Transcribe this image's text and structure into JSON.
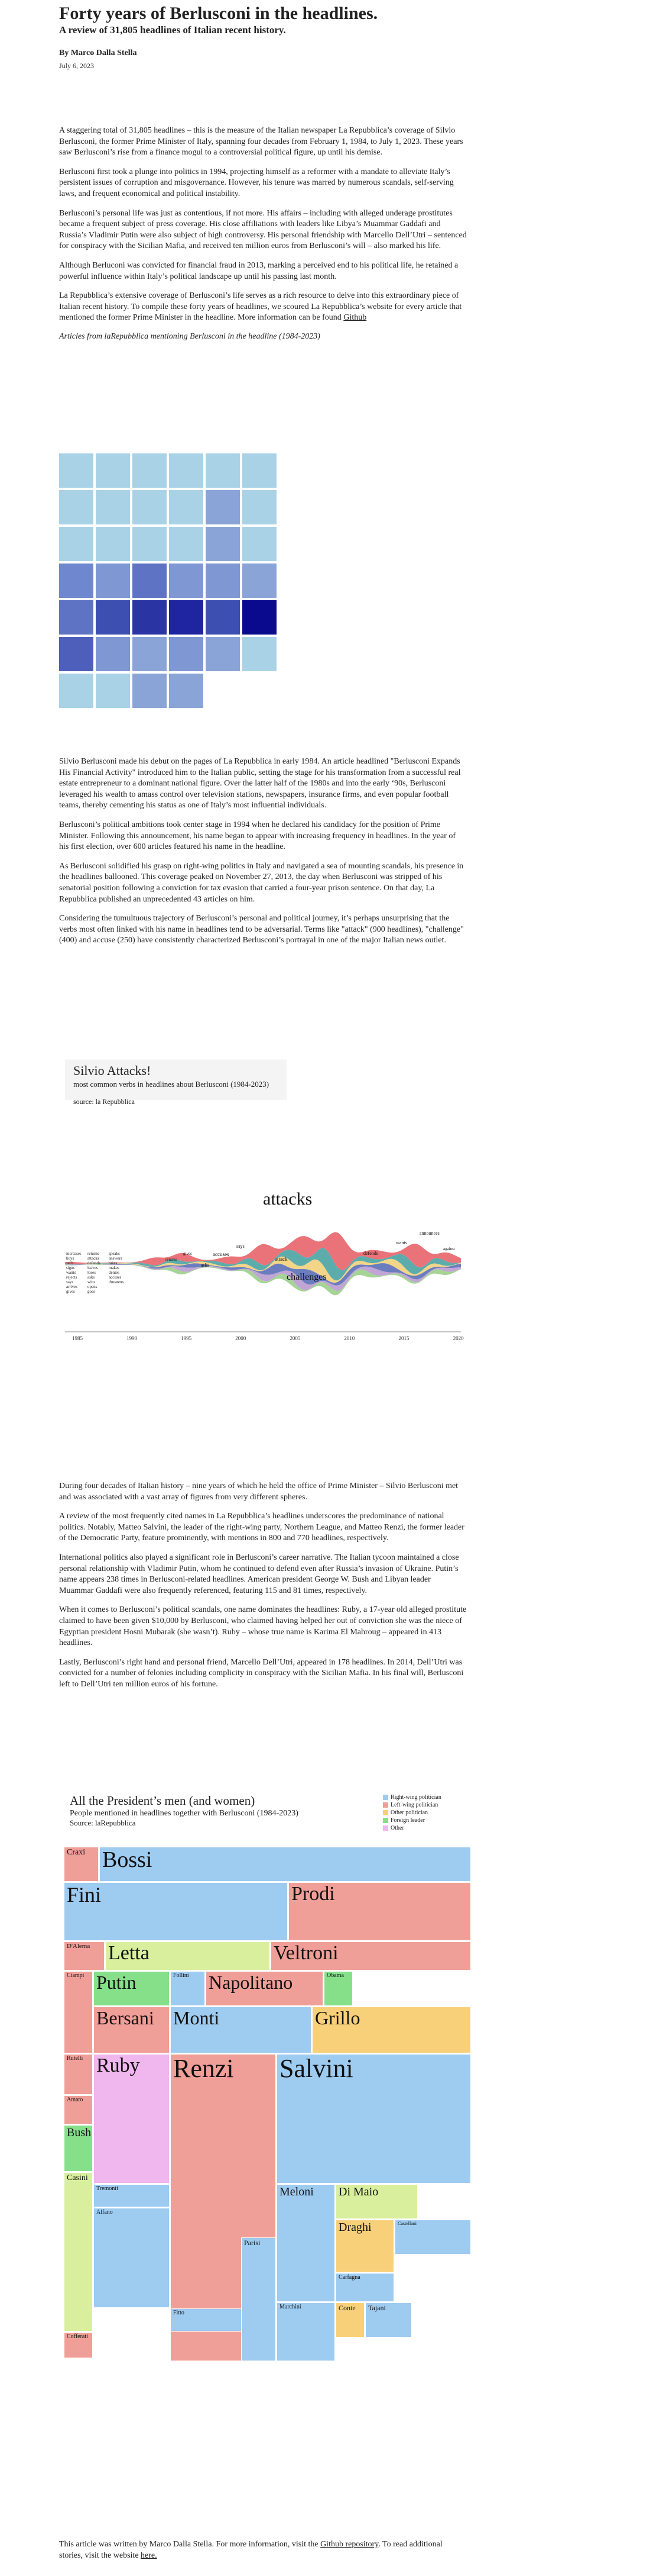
{
  "article": {
    "title": "Forty years of Berlusconi in the headlines.",
    "subtitle": "A review of 31,805 headlines of Italian recent history.",
    "byline": "By Marco Dalla Stella",
    "date": "July 6, 2023"
  },
  "intro": [
    "A staggering total of 31,805 headlines – this is the measure of the Italian newspaper La Repubblica’s coverage of Silvio Berlusconi, the former Prime Minister of Italy, spanning four decades from February 1, 1984, to July 1, 2023. These years saw Berlusconi’s rise from a finance mogul to a controversial political figure, up until his demise.",
    "Berlusconi first took a plunge into politics in 1994, projecting himself as a reformer with a mandate to alleviate Italy’s persistent issues of corruption and misgovernance. However, his tenure was marred by numerous scandals, self-serving laws, and frequent economical and political instability.",
    "Berlusconi’s personal life was just as contentious, if not more. His affairs – including with alleged underage prostitutes became a frequent subject of press coverage. His close affiliations with leaders like Libya’s Muammar Gaddafi and Russia’s Vladimir Putin were also subject of high controversy. His personal friendship with Marcello Dell’Utri – sentenced for conspiracy with the Sicilian Mafia, and received ten million euros from Berlusconi’s will – also marked his life.",
    "Although Berluconi was convicted for financial fraud in 2013, marking a perceived end to his political life, he retained a powerful influence within Italy’s political landscape up until his passing last month."
  ],
  "intro_last": {
    "text": "La Repubblica’s extensive coverage of Berlusconi’s life serves as a rich resource to delve into this extraordinary piece of Italian recent history. To compile these forty years of headlines, we scoured La Repubblica’s website for every article that mentioned the former Prime Minister in the headline. More information can be found ",
    "link": "Github"
  },
  "tiles": {
    "caption": "Articles from laRepubblica mentioning Berlusconi in the headline (1984-2023)",
    "colors": [
      "#a9d2e6",
      "#a9d2e6",
      "#a9d2e6",
      "#a9d2e6",
      "#a9d2e6",
      "#a9d2e6",
      "#a9d2e6",
      "#a9d2e6",
      "#a9d2e6",
      "#a9d2e6",
      "#8aa4d8",
      "#a9d2e6",
      "#a9d2e6",
      "#a9d2e6",
      "#a9d2e6",
      "#a9d2e6",
      "#8aa4d8",
      "#a9d2e6",
      "#6f87cf",
      "#7f97d3",
      "#5f73c4",
      "#7f97d3",
      "#7f97d3",
      "#8aa4d8",
      "#5f73c4",
      "#3d4fb0",
      "#2a35a3",
      "#1f24a0",
      "#3d4fb0",
      "#0a0a8e",
      "#4d5fba",
      "#7f97d3",
      "#8aa4d8",
      "#7f97d3",
      "#8aa4d8",
      "#a9d2e6",
      "#a9d2e6",
      "#a9d2e6",
      "#8aa4d8",
      "#8aa4d8"
    ]
  },
  "middle": [
    "Silvio Berlusconi made his debut on the pages of La Repubblica in early 1984. An article headlined \"Berlusconi Expands His Financial Activity\" introduced him to the Italian public, setting the stage for his transformation from a successful real estate entrepreneur to a dominant national figure. Over the latter half of the 1980s and into the early ‘90s, Berlusconi leveraged his wealth to amass control over television stations, newspapers, insurance firms, and even popular football teams, thereby cementing his status as one of Italy’s most influential individuals.",
    "Berlusconi’s political ambitions took center stage in 1994 when he declared his candidacy for the position of Prime Minister. Following this announcement, his name began to appear with increasing frequency in headlines. In the year of his first election, over 600 articles featured his name in the headline.",
    "As Berlusconi solidified his grasp on right-wing politics in Italy and navigated a sea of mounting scandals, his presence in the headlines ballooned. This coverage peaked on November 27, 2013, the day when Berlusconi was stripped of his senatorial position following a conviction for tax evasion that carried a four-year prison sentence. On that day, La Repubblica published an unprecedented 43 articles on him.",
    "Considering the tumultuous trajectory of Berlusconi’s personal and political journey, it’s perhaps unsurprising that the verbs most often linked with his name in headlines tend to be adversarial. Terms like \"attack\" (900 headlines), \"challenge\" (400) and accuse (250) have consistently characterized Berlusconi’s portrayal in one of the major Italian news outlet."
  ],
  "chart_data": [
    {
      "type": "area",
      "title": "Silvio Attacks!",
      "subtitle": "most common verbs in headlines about Berlusconi (1984-2023)",
      "source": "source: la Repubblica",
      "x": [
        "1985",
        "1990",
        "1995",
        "2000",
        "2005",
        "2010",
        "2015",
        "2020"
      ],
      "series_labels": [
        "attacks",
        "challenges",
        "accuses",
        "attack",
        "asks",
        "says",
        "wants",
        "announces",
        "defends",
        "gives",
        "returns",
        "against"
      ],
      "streams": [
        {
          "color": "#e8646a",
          "name": "attacks"
        },
        {
          "color": "#4aa3a3",
          "name": "challenges"
        },
        {
          "color": "#f2d07a",
          "name": "accuses"
        },
        {
          "color": "#5b6fb8",
          "name": "asks"
        },
        {
          "color": "#b99bd0",
          "name": "says"
        },
        {
          "color": "#9bcf8a",
          "name": "wants"
        }
      ],
      "small_labels_left": [
        "increases",
        "buys",
        "sells",
        "signs",
        "wants",
        "rejects",
        "says",
        "arrives",
        "gives",
        "returns",
        "attacks",
        "defends",
        "leaves",
        "loses",
        "asks",
        "wins",
        "opens",
        "goes",
        "speaks",
        "answers",
        "takes",
        "makes",
        "denies",
        "accuses",
        "threatens"
      ]
    },
    {
      "type": "treemap",
      "title": "All the President’s men (and women)",
      "subtitle": "People mentioned in headlines together with Berlusconi (1984-2023)",
      "source": "Source: laRepubblica",
      "legend": [
        {
          "label": "Right-wing politician",
          "color": "#9ecbf0"
        },
        {
          "label": "Left-wing politician",
          "color": "#f09f98"
        },
        {
          "label": "Other politician",
          "color": "#f8d07a"
        },
        {
          "label": "Foreign leader",
          "color": "#86e08a"
        },
        {
          "label": "Other",
          "color": "#f0b6ee"
        }
      ],
      "cells": [
        {
          "name": "Craxi",
          "color": "#f09f98"
        },
        {
          "name": "Bossi",
          "color": "#9ecbf0"
        },
        {
          "name": "Fini",
          "color": "#9ecbf0"
        },
        {
          "name": "Prodi",
          "color": "#f09f98"
        },
        {
          "name": "Letta",
          "color": "#d9ef9e"
        },
        {
          "name": "Veltroni",
          "color": "#f09f98"
        },
        {
          "name": "Putin",
          "color": "#86e08a"
        },
        {
          "name": "Napolitano",
          "color": "#f09f98"
        },
        {
          "name": "Grillo",
          "color": "#f8d07a"
        },
        {
          "name": "Bersani",
          "color": "#f09f98"
        },
        {
          "name": "Monti",
          "color": "#9ecbf0"
        },
        {
          "name": "Renzi",
          "color": "#f09f98"
        },
        {
          "name": "Salvini",
          "color": "#9ecbf0"
        },
        {
          "name": "Ruby",
          "color": "#f0b6ee"
        },
        {
          "name": "Bush",
          "color": "#86e08a"
        },
        {
          "name": "Meloni",
          "color": "#9ecbf0"
        },
        {
          "name": "Di Maio",
          "color": "#d9ef9e"
        },
        {
          "name": "Draghi",
          "color": "#f8d07a"
        },
        {
          "name": "Casini",
          "color": "#d9ef9e"
        },
        {
          "name": "D'Alema",
          "color": "#f09f98"
        },
        {
          "name": "Ciampi",
          "color": "#f09f98"
        },
        {
          "name": "Follini",
          "color": "#9ecbf0"
        },
        {
          "name": "Obama",
          "color": "#86e08a"
        },
        {
          "name": "Rutelli",
          "color": "#f09f98"
        },
        {
          "name": "Amato",
          "color": "#f09f98"
        },
        {
          "name": "Tremonti",
          "color": "#9ecbf0"
        },
        {
          "name": "Alfano",
          "color": "#9ecbf0"
        },
        {
          "name": "Fitto",
          "color": "#9ecbf0"
        },
        {
          "name": "Parisi",
          "color": "#9ecbf0"
        },
        {
          "name": "Marchini",
          "color": "#9ecbf0"
        },
        {
          "name": "Conte",
          "color": "#f8d07a"
        },
        {
          "name": "Tajani",
          "color": "#9ecbf0"
        },
        {
          "name": "Cofferati",
          "color": "#f09f98"
        },
        {
          "name": "Toti",
          "color": "#9ecbf0"
        },
        {
          "name": "Carfagna",
          "color": "#9ecbf0"
        },
        {
          "name": "Castellani",
          "color": "#9ecbf0"
        }
      ]
    }
  ],
  "after": [
    "During four decades of Italian history – nine years of which he held the office of Prime Minister – Silvio Berlusconi met and was associated with a vast array of figures from very different spheres.",
    "A review of the most frequently cited names in La Repubblica’s headlines underscores the predominance of national politics. Notably, Matteo Salvini, the leader of the right-wing party, Northern League, and Matteo Renzi, the former leader of the Democratic Party, feature prominently, with mentions in 800 and 770 headlines, respectively.",
    "International politics also played a significant role in Berlusconi’s career narrative. The Italian tycoon maintained a close personal relationship with Vladimir Putin, whom he continued to defend even after Russia’s invasion of Ukraine. Putin’s name appears 238 times in Berlusconi-related headlines. American president George W. Bush and Libyan leader Muammar Gaddafi were also frequently referenced, featuring 115 and 81 times, respectively.",
    "When it comes to Berlusconi’s political scandals, one name dominates the headlines: Ruby, a 17-year old alleged prostitute claimed to have been given $10,000 by Berlusconi, who claimed having helped her out of conviction she was the niece of Egyptian president Hosni Mubarak (she wasn’t). Ruby – whose true name is Karima El Mahroug – appeared in 413 headlines.",
    "Lastly, Berlusconi’s right hand and personal friend, Marcello Dell’Utri, appeared in 178 headlines. In 2014, Dell’Utri was convicted for a number of felonies including complicity in conspiracy with the Sicilian Mafia. In his final will, Berlusconi left to Dell’Utri ten million euros of his fortune."
  ],
  "footer": {
    "text": "This article was written by Marco Dalla Stella. For more information, visit the ",
    "link1": "Github repository",
    "text2": ". To read additional stories, visit the website ",
    "link2": "here."
  }
}
